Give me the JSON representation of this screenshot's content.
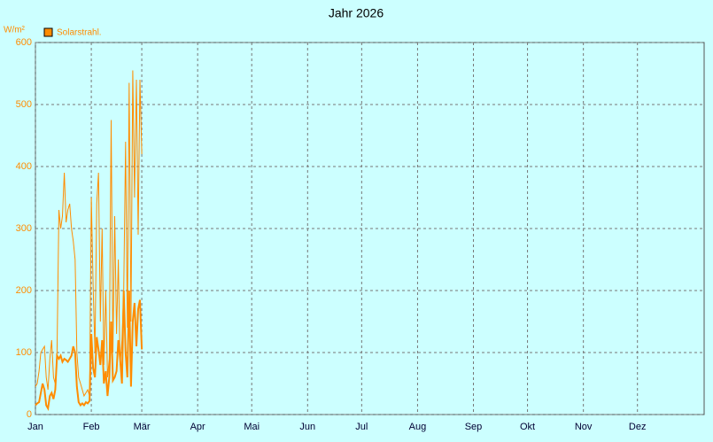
{
  "chart_data": {
    "type": "line",
    "title": "Jahr 2026",
    "y_label": "W/m²",
    "x": [
      0,
      1,
      2,
      3,
      4,
      5,
      6,
      7,
      8,
      9,
      10,
      11,
      12,
      13,
      14,
      15,
      16,
      17,
      18,
      19,
      20,
      21,
      22,
      23,
      24,
      25,
      26,
      27,
      28,
      29,
      30,
      31,
      32,
      33,
      34,
      35,
      36,
      37,
      38,
      39,
      40,
      41,
      42,
      43,
      44,
      45,
      46,
      47,
      48,
      49,
      50,
      51,
      52,
      53,
      54,
      55,
      56,
      57,
      58,
      59
    ],
    "series": [
      {
        "name": "Solarstrahl.",
        "color": "#ff8c00",
        "width": 1,
        "values": [
          45,
          50,
          70,
          100,
          105,
          110,
          60,
          40,
          90,
          120,
          60,
          50,
          100,
          330,
          300,
          320,
          390,
          310,
          330,
          340,
          300,
          280,
          250,
          100,
          60,
          50,
          40,
          30,
          35,
          40,
          30,
          350,
          210,
          100,
          340,
          390,
          150,
          300,
          80,
          200,
          60,
          90,
          475,
          100,
          320,
          130,
          250,
          80,
          120,
          200,
          440,
          140,
          535,
          150,
          555,
          350,
          540,
          290,
          540,
          420
        ]
      },
      {
        "color": "#ff8c00",
        "width": 2,
        "values": [
          15,
          18,
          20,
          35,
          50,
          40,
          15,
          10,
          30,
          35,
          25,
          40,
          95,
          90,
          95,
          85,
          90,
          88,
          85,
          90,
          95,
          110,
          100,
          45,
          20,
          15,
          18,
          15,
          20,
          18,
          22,
          130,
          75,
          60,
          125,
          105,
          80,
          120,
          50,
          70,
          30,
          60,
          150,
          55,
          60,
          70,
          120,
          90,
          50,
          200,
          100,
          60,
          200,
          45,
          150,
          180,
          110,
          170,
          185,
          105
        ]
      }
    ],
    "xlim": [
      0,
      371
    ],
    "xticks": [
      {
        "value": 0,
        "label": "Jan"
      },
      {
        "value": 31,
        "label": "Feb"
      },
      {
        "value": 59,
        "label": "Mär"
      },
      {
        "value": 90,
        "label": "Apr"
      },
      {
        "value": 120,
        "label": "Mai"
      },
      {
        "value": 151,
        "label": "Jun"
      },
      {
        "value": 181,
        "label": "Jul"
      },
      {
        "value": 212,
        "label": "Aug"
      },
      {
        "value": 243,
        "label": "Sep"
      },
      {
        "value": 273,
        "label": "Okt"
      },
      {
        "value": 304,
        "label": "Nov"
      },
      {
        "value": 334,
        "label": "Dez"
      }
    ],
    "ylim": [
      0,
      600
    ],
    "yticks": [
      0,
      100,
      200,
      300,
      400,
      500,
      600
    ],
    "grid": true
  }
}
